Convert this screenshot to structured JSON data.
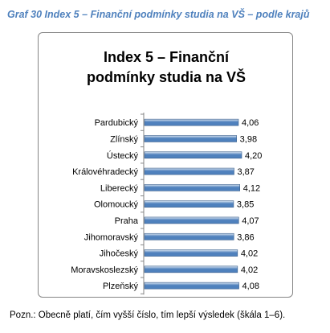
{
  "caption": "Graf 30 Index 5 – Finanční podmínky studia na VŠ – podle krajů",
  "note": "Pozn.: Obecně platí, čím vyšší číslo, tím lepší výsledek (škála 1–6).",
  "colors": {
    "bar_fill": "#4f81bd",
    "bar_highlight": "#dbe5f1",
    "caption": "#4f81bd"
  },
  "chart_data": {
    "type": "bar",
    "orientation": "horizontal",
    "title_lines": [
      "Index 5 – Finanční",
      "podmínky studia na VŠ"
    ],
    "categories": [
      "Pardubický",
      "Zlínský",
      "Ústecký",
      "Královéhradecký",
      "Liberecký",
      "Olomoucký",
      "Praha",
      "Jihomoravský",
      "Jihočeský",
      "Moravskoslezský",
      "Plzeňský"
    ],
    "values": [
      4.06,
      3.98,
      4.2,
      3.87,
      4.12,
      3.85,
      4.07,
      3.86,
      4.02,
      4.02,
      4.08
    ],
    "labels": [
      "4,06",
      "3,98",
      "4,20",
      "3,87",
      "4,12",
      "3,85",
      "4,07",
      "3,86",
      "4,02",
      "4,02",
      "4,08"
    ],
    "grid": false,
    "legend": "none"
  }
}
